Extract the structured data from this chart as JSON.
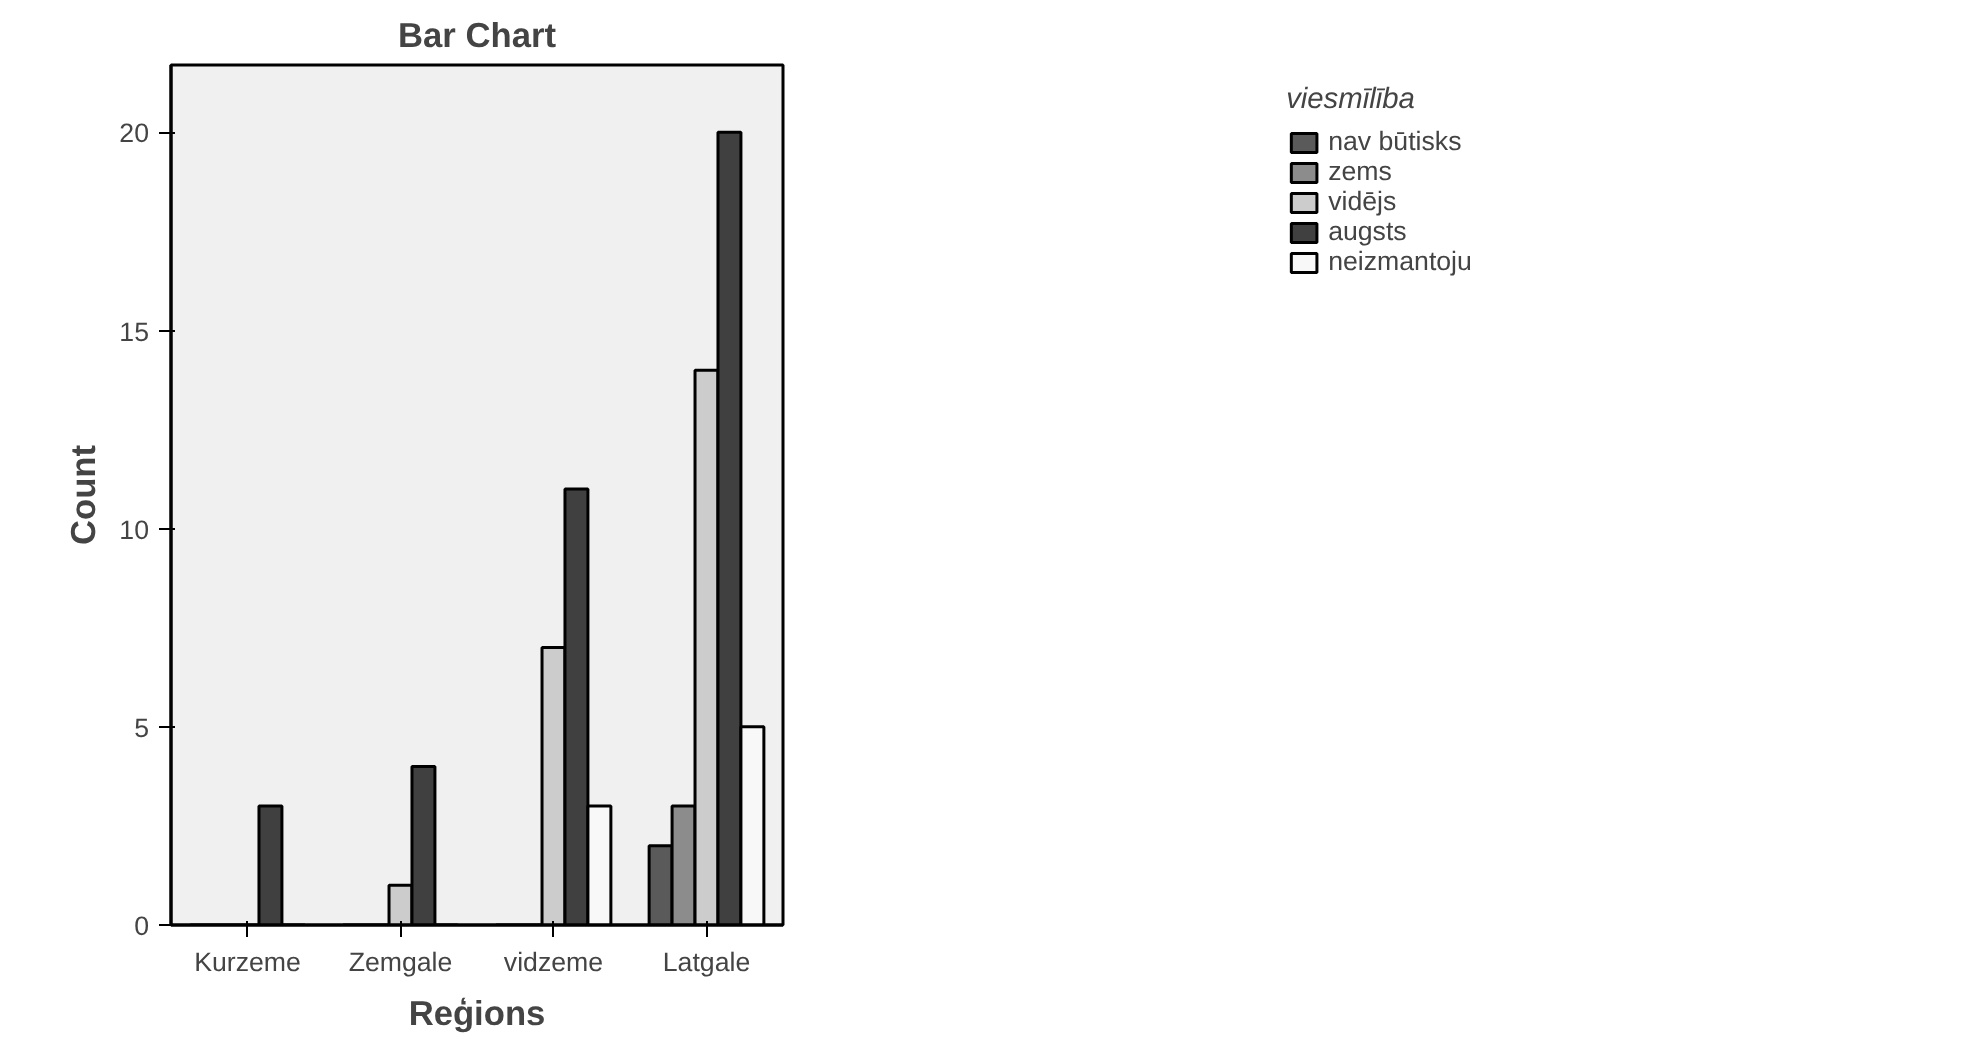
{
  "chart_data": {
    "type": "bar",
    "title": "Bar Chart",
    "xlabel": "Reģions",
    "ylabel": "Count",
    "legend_title": "viesmīlība",
    "categories": [
      "Kurzeme",
      "Zemgale",
      "vidzeme",
      "Latgale"
    ],
    "series": [
      {
        "name": "nav būtisks",
        "color": "#5a5a5a",
        "values": [
          0,
          0,
          0,
          2
        ]
      },
      {
        "name": "zems",
        "color": "#8c8c8c",
        "values": [
          0,
          0,
          0,
          3
        ]
      },
      {
        "name": "vidējs",
        "color": "#cccccc",
        "values": [
          0,
          1,
          7,
          14
        ]
      },
      {
        "name": "augsts",
        "color": "#404040",
        "values": [
          3,
          4,
          11,
          20
        ]
      },
      {
        "name": "neizmantoju",
        "color": "#f8f8f8",
        "values": [
          0,
          0,
          3,
          5
        ]
      }
    ],
    "ylim": [
      0,
      21.7
    ],
    "yticks": [
      0,
      5,
      10,
      15,
      20
    ],
    "grid": false,
    "legend": "right"
  }
}
